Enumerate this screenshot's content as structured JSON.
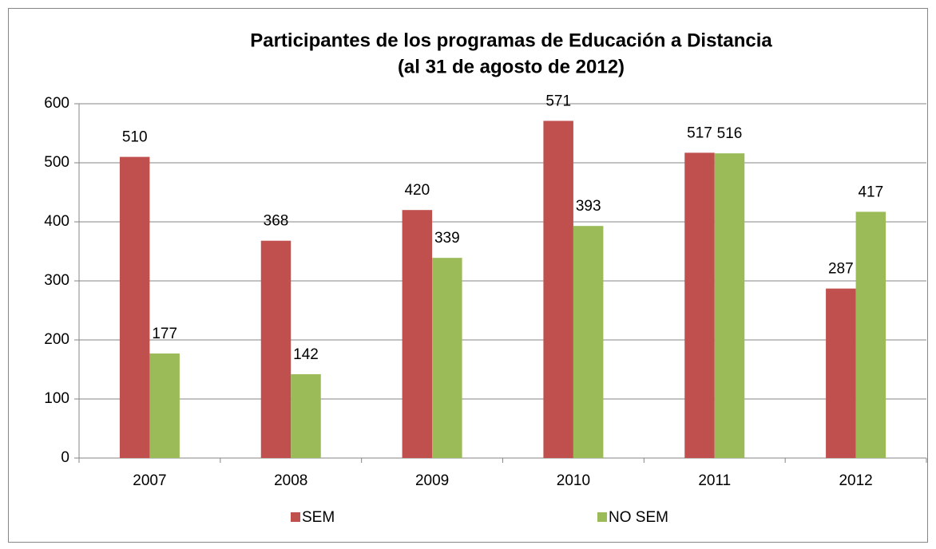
{
  "chart_data": {
    "type": "bar",
    "title": [
      "Participantes de los programas de Educación a Distancia",
      "(al 31 de agosto de 2012)"
    ],
    "categories": [
      "2007",
      "2008",
      "2009",
      "2010",
      "2011",
      "2012"
    ],
    "series": [
      {
        "name": "SEM",
        "color": "#c0504d",
        "values": [
          510,
          368,
          420,
          571,
          517,
          287
        ]
      },
      {
        "name": "NO SEM",
        "color": "#9bbb59",
        "values": [
          177,
          142,
          339,
          393,
          516,
          417
        ]
      }
    ],
    "ylim": [
      0,
      600
    ],
    "yticks": [
      0,
      100,
      200,
      300,
      400,
      500,
      600
    ],
    "grid": true,
    "legend": "bottom"
  }
}
